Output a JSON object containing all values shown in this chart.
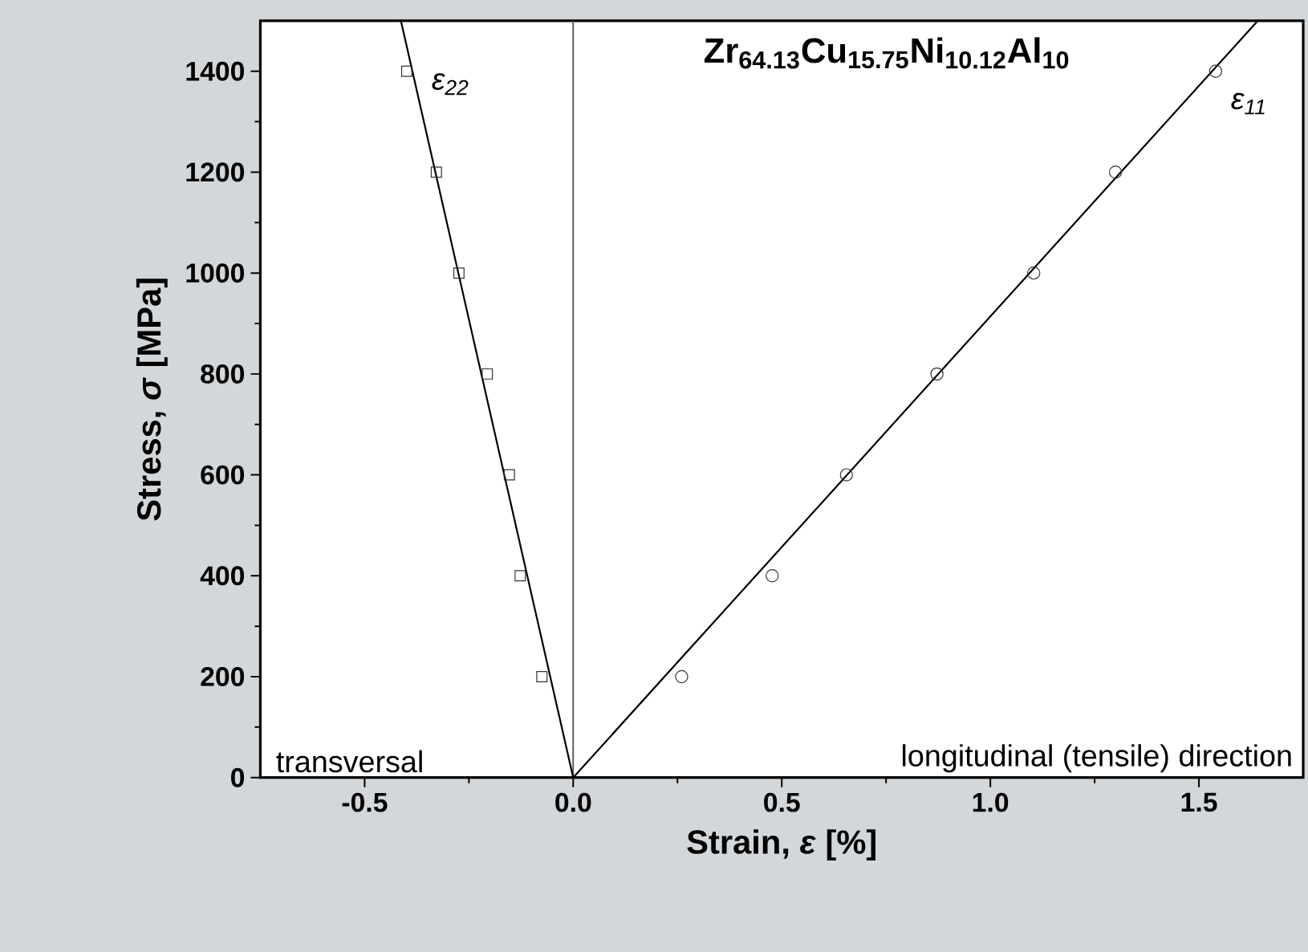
{
  "chart_data": {
    "type": "scatter",
    "xlabel": "Strain, *ε* [%]",
    "ylabel": "Stress, *σ* [MPa]",
    "xlim": [
      -0.75,
      1.75
    ],
    "ylim": [
      0,
      1500
    ],
    "xticks": [
      -0.5,
      {
        "value": 0,
        "label": "0.0"
      },
      0.5,
      {
        "value": 1,
        "label": "1.0"
      },
      1.5
    ],
    "yticks": [
      0,
      200,
      400,
      600,
      800,
      1000,
      1200,
      1400
    ],
    "grid": false,
    "ref_lines": [
      {
        "axis": "x",
        "value": 0,
        "color": "#555555"
      }
    ],
    "series": [
      {
        "name": "ε$_{22}$",
        "marker": "square",
        "color": "#333333",
        "x": [
          -0.075,
          -0.127,
          -0.153,
          -0.206,
          -0.274,
          -0.328,
          -0.399
        ],
        "values": [
          200,
          400,
          600,
          800,
          1000,
          1200,
          1400
        ]
      },
      {
        "type": "line",
        "marker": "none",
        "color": "#000000",
        "x": [
          0,
          -0.413
        ],
        "values": [
          0,
          1500
        ]
      },
      {
        "name": "ε$_{11}$",
        "marker": "circle",
        "color": "#333333",
        "x": [
          0.26,
          0.477,
          0.655,
          0.872,
          1.104,
          1.3,
          1.54
        ],
        "values": [
          200,
          400,
          600,
          800,
          1000,
          1200,
          1400
        ]
      },
      {
        "type": "line",
        "marker": "none",
        "color": "#000000",
        "x": [
          0,
          1.641
        ],
        "values": [
          0,
          1500
        ]
      }
    ],
    "annotations": [
      "Zr$_{64.13}$Cu$_{15.75}$Ni$_{10.12}$Al$_{10}$",
      "transversal",
      "longitudinal (tensile) direction"
    ]
  }
}
